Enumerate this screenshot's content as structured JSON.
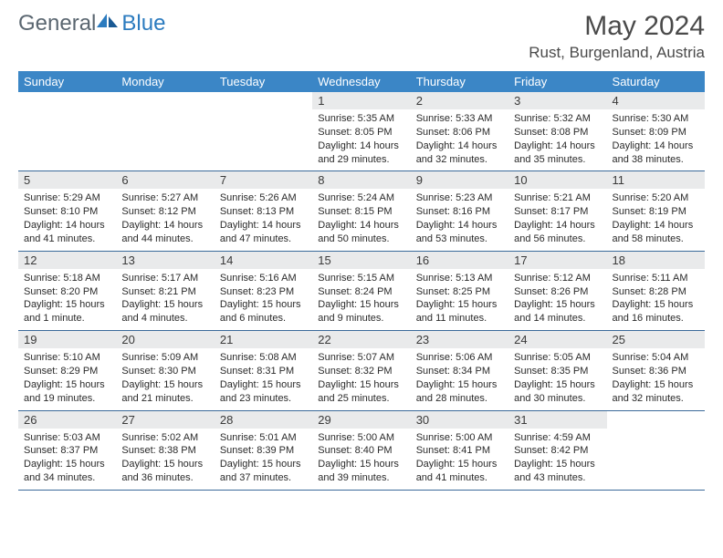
{
  "logo": {
    "general": "General",
    "blue": "Blue"
  },
  "title": "May 2024",
  "location": "Rust, Burgenland, Austria",
  "colors": {
    "header_bg": "#3b86c6",
    "daynum_bg": "#e9eaeb",
    "row_border": "#3b6a9a",
    "logo_gray": "#5a6670",
    "logo_blue": "#2b7bbf"
  },
  "weekdays": [
    "Sunday",
    "Monday",
    "Tuesday",
    "Wednesday",
    "Thursday",
    "Friday",
    "Saturday"
  ],
  "weeks": [
    [
      null,
      null,
      null,
      {
        "d": "1",
        "sr": "5:35 AM",
        "ss": "8:05 PM",
        "dl": "14 hours and 29 minutes."
      },
      {
        "d": "2",
        "sr": "5:33 AM",
        "ss": "8:06 PM",
        "dl": "14 hours and 32 minutes."
      },
      {
        "d": "3",
        "sr": "5:32 AM",
        "ss": "8:08 PM",
        "dl": "14 hours and 35 minutes."
      },
      {
        "d": "4",
        "sr": "5:30 AM",
        "ss": "8:09 PM",
        "dl": "14 hours and 38 minutes."
      }
    ],
    [
      {
        "d": "5",
        "sr": "5:29 AM",
        "ss": "8:10 PM",
        "dl": "14 hours and 41 minutes."
      },
      {
        "d": "6",
        "sr": "5:27 AM",
        "ss": "8:12 PM",
        "dl": "14 hours and 44 minutes."
      },
      {
        "d": "7",
        "sr": "5:26 AM",
        "ss": "8:13 PM",
        "dl": "14 hours and 47 minutes."
      },
      {
        "d": "8",
        "sr": "5:24 AM",
        "ss": "8:15 PM",
        "dl": "14 hours and 50 minutes."
      },
      {
        "d": "9",
        "sr": "5:23 AM",
        "ss": "8:16 PM",
        "dl": "14 hours and 53 minutes."
      },
      {
        "d": "10",
        "sr": "5:21 AM",
        "ss": "8:17 PM",
        "dl": "14 hours and 56 minutes."
      },
      {
        "d": "11",
        "sr": "5:20 AM",
        "ss": "8:19 PM",
        "dl": "14 hours and 58 minutes."
      }
    ],
    [
      {
        "d": "12",
        "sr": "5:18 AM",
        "ss": "8:20 PM",
        "dl": "15 hours and 1 minute."
      },
      {
        "d": "13",
        "sr": "5:17 AM",
        "ss": "8:21 PM",
        "dl": "15 hours and 4 minutes."
      },
      {
        "d": "14",
        "sr": "5:16 AM",
        "ss": "8:23 PM",
        "dl": "15 hours and 6 minutes."
      },
      {
        "d": "15",
        "sr": "5:15 AM",
        "ss": "8:24 PM",
        "dl": "15 hours and 9 minutes."
      },
      {
        "d": "16",
        "sr": "5:13 AM",
        "ss": "8:25 PM",
        "dl": "15 hours and 11 minutes."
      },
      {
        "d": "17",
        "sr": "5:12 AM",
        "ss": "8:26 PM",
        "dl": "15 hours and 14 minutes."
      },
      {
        "d": "18",
        "sr": "5:11 AM",
        "ss": "8:28 PM",
        "dl": "15 hours and 16 minutes."
      }
    ],
    [
      {
        "d": "19",
        "sr": "5:10 AM",
        "ss": "8:29 PM",
        "dl": "15 hours and 19 minutes."
      },
      {
        "d": "20",
        "sr": "5:09 AM",
        "ss": "8:30 PM",
        "dl": "15 hours and 21 minutes."
      },
      {
        "d": "21",
        "sr": "5:08 AM",
        "ss": "8:31 PM",
        "dl": "15 hours and 23 minutes."
      },
      {
        "d": "22",
        "sr": "5:07 AM",
        "ss": "8:32 PM",
        "dl": "15 hours and 25 minutes."
      },
      {
        "d": "23",
        "sr": "5:06 AM",
        "ss": "8:34 PM",
        "dl": "15 hours and 28 minutes."
      },
      {
        "d": "24",
        "sr": "5:05 AM",
        "ss": "8:35 PM",
        "dl": "15 hours and 30 minutes."
      },
      {
        "d": "25",
        "sr": "5:04 AM",
        "ss": "8:36 PM",
        "dl": "15 hours and 32 minutes."
      }
    ],
    [
      {
        "d": "26",
        "sr": "5:03 AM",
        "ss": "8:37 PM",
        "dl": "15 hours and 34 minutes."
      },
      {
        "d": "27",
        "sr": "5:02 AM",
        "ss": "8:38 PM",
        "dl": "15 hours and 36 minutes."
      },
      {
        "d": "28",
        "sr": "5:01 AM",
        "ss": "8:39 PM",
        "dl": "15 hours and 37 minutes."
      },
      {
        "d": "29",
        "sr": "5:00 AM",
        "ss": "8:40 PM",
        "dl": "15 hours and 39 minutes."
      },
      {
        "d": "30",
        "sr": "5:00 AM",
        "ss": "8:41 PM",
        "dl": "15 hours and 41 minutes."
      },
      {
        "d": "31",
        "sr": "4:59 AM",
        "ss": "8:42 PM",
        "dl": "15 hours and 43 minutes."
      },
      null
    ]
  ]
}
